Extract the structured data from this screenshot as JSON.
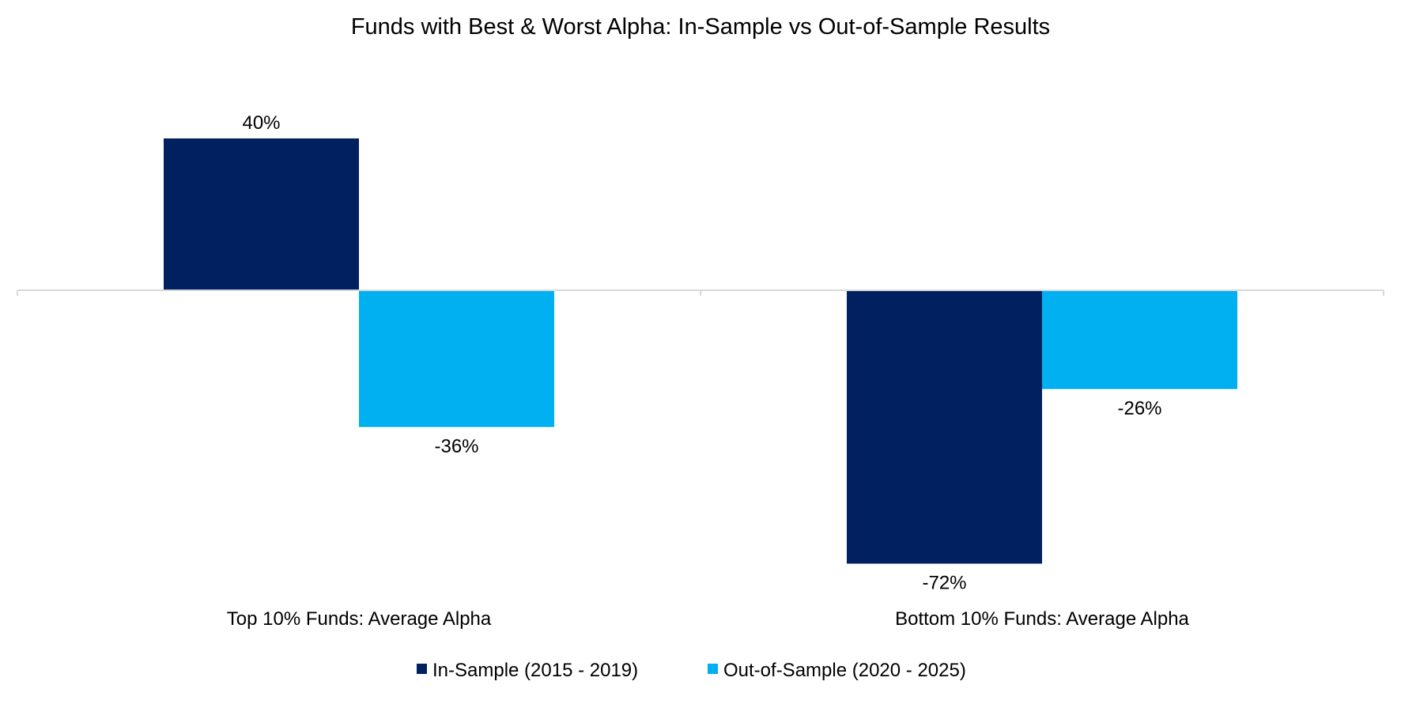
{
  "chart_data": {
    "type": "bar",
    "title": "Funds with Best & Worst Alpha: In-Sample vs Out-of-Sample Results",
    "categories": [
      "Top 10% Funds: Average Alpha",
      "Bottom 10% Funds: Average Alpha"
    ],
    "series": [
      {
        "name": "In-Sample (2015 - 2019)",
        "color": "#002060",
        "values": [
          40,
          -72
        ],
        "labels": [
          "40%",
          "-72%"
        ]
      },
      {
        "name": "Out-of-Sample (2020 - 2025)",
        "color": "#00B0F0",
        "values": [
          -36,
          -26
        ],
        "labels": [
          "-36%",
          "-26%"
        ]
      }
    ],
    "value_unit": "%",
    "ylim": [
      -80,
      50
    ],
    "legend_position": "bottom",
    "grid": false,
    "y_axis_visible": false
  }
}
